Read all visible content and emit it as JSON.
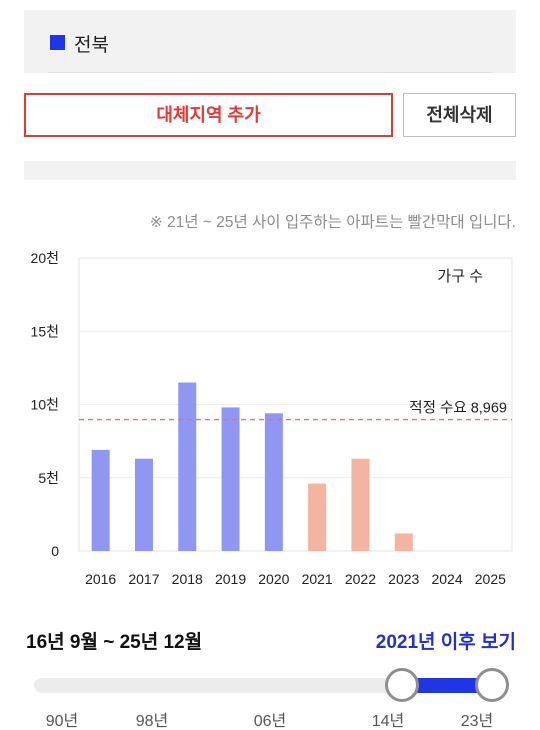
{
  "region": {
    "name": "전북",
    "color": "#1f35e6"
  },
  "buttons": {
    "add_region": "대체지역 추가",
    "delete_all": "전체삭제"
  },
  "note": "※ 21년 ~ 25년 사이 입주하는 아파트는 빨간막대 입니다.",
  "chart_data": {
    "type": "bar",
    "unit_label": "가구 수",
    "categories": [
      "2016",
      "2017",
      "2018",
      "2019",
      "2020",
      "2021",
      "2022",
      "2023",
      "2024",
      "2025"
    ],
    "values": [
      6900,
      6300,
      11500,
      9800,
      9400,
      4600,
      6300,
      1200,
      0,
      0
    ],
    "colors": [
      "#8f97f2",
      "#8f97f2",
      "#8f97f2",
      "#8f97f2",
      "#8f97f2",
      "#f4b4a2",
      "#f4b4a2",
      "#f4b4a2",
      "#f4b4a2",
      "#f4b4a2"
    ],
    "ylim": [
      0,
      20000
    ],
    "yticks": [
      0,
      5000,
      10000,
      15000,
      20000
    ],
    "ytick_labels": [
      "0",
      "5천",
      "10천",
      "15천",
      "20천"
    ],
    "reference_line": {
      "value": 8969,
      "label": "적정 수요 8,969",
      "color": "#e57373"
    },
    "grid": true
  },
  "period": {
    "label": "16년 9월 ~ 25년 12월"
  },
  "after_link": "2021년 이후 보기",
  "slider": {
    "ticks": [
      "90년",
      "98년",
      "06년",
      "14년",
      "23년"
    ],
    "range_color": "#1f35e6"
  }
}
